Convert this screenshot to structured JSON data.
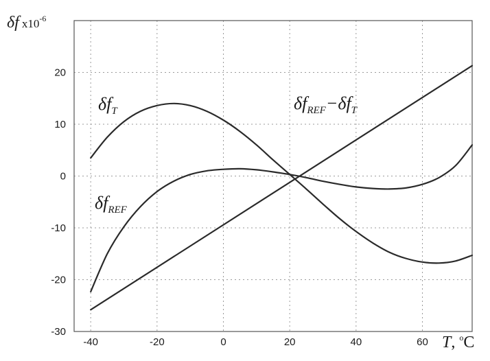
{
  "chart_data": {
    "type": "line",
    "xlabel": "T, °C",
    "xlabel_main": "T",
    "xlabel_unit_prefix": ", ",
    "xlabel_unit_sup": "o",
    "xlabel_unit": "C",
    "ylabel": "δf x10-6",
    "ylabel_main": "δf",
    "ylabel_unit_prefix": "x10",
    "ylabel_unit_exp": "-6",
    "xlim": [
      -45,
      75
    ],
    "ylim": [
      -30,
      30
    ],
    "x_ticks": [
      -40,
      -20,
      0,
      20,
      40,
      60
    ],
    "x_tick_labels": [
      "-40",
      "-20",
      "0",
      "20",
      "40",
      "60"
    ],
    "y_ticks": [
      -30,
      -20,
      -10,
      0,
      10,
      20
    ],
    "y_tick_labels": [
      "-30",
      "-20",
      "-10",
      "0",
      "10",
      "20"
    ],
    "grid": true,
    "series": [
      {
        "name": "δf_T",
        "label_main": "δf",
        "label_sub": "T",
        "x": [
          -40,
          -35,
          -30,
          -25,
          -20,
          -15,
          -10,
          -5,
          0,
          5,
          10,
          15,
          20,
          25,
          30,
          35,
          40,
          45,
          50,
          55,
          60,
          65,
          70,
          75
        ],
        "y": [
          3.5,
          7.5,
          10.5,
          12.5,
          13.6,
          14.0,
          13.6,
          12.5,
          10.8,
          8.6,
          6.0,
          3.1,
          0.3,
          -2.5,
          -5.4,
          -8.2,
          -10.7,
          -12.9,
          -14.7,
          -15.9,
          -16.6,
          -16.8,
          -16.4,
          -15.3
        ]
      },
      {
        "name": "δf_REF",
        "label_main": "δf",
        "label_sub": "REF",
        "x": [
          -40,
          -35,
          -30,
          -25,
          -20,
          -15,
          -10,
          -5,
          0,
          5,
          10,
          15,
          20,
          25,
          30,
          35,
          40,
          45,
          50,
          55,
          60,
          65,
          70,
          75
        ],
        "y": [
          -22.3,
          -15.0,
          -9.8,
          -5.9,
          -3.0,
          -1.0,
          0.3,
          1.0,
          1.3,
          1.4,
          1.2,
          0.8,
          0.3,
          -0.3,
          -1.0,
          -1.6,
          -2.1,
          -2.4,
          -2.5,
          -2.3,
          -1.6,
          -0.3,
          2.0,
          6.0
        ]
      },
      {
        "name": "δf_REF−δf_T",
        "label_parts": [
          {
            "main": "δf",
            "sub": "REF"
          },
          {
            "main": "−δf",
            "sub": "T"
          }
        ],
        "x": [
          -40,
          75
        ],
        "y": [
          -25.8,
          21.3
        ]
      }
    ]
  }
}
